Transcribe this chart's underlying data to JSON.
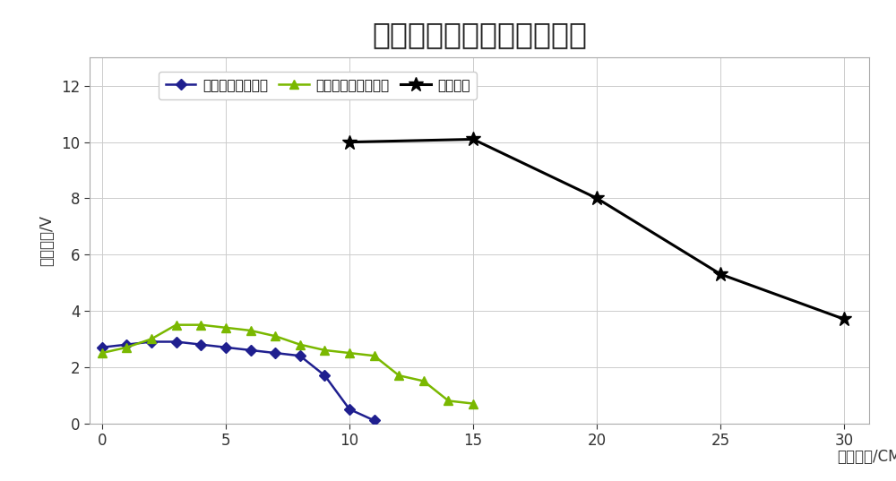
{
  "title": "不同线圈结构传输特性比较",
  "xlabel": "传输距离/CM",
  "ylabel": "副边电压/V",
  "series": [
    {
      "label": "平面线圈副边电压",
      "x": [
        0,
        1,
        2,
        3,
        4,
        5,
        6,
        7,
        8,
        9,
        10,
        11
      ],
      "y": [
        2.7,
        2.8,
        2.9,
        2.9,
        2.8,
        2.7,
        2.6,
        2.5,
        2.4,
        1.7,
        0.5,
        0.1
      ],
      "color": "#1f1f8f",
      "marker": "D",
      "markersize": 6,
      "linewidth": 1.8
    },
    {
      "label": "立方体线圈副边电压",
      "x": [
        0,
        1,
        2,
        3,
        4,
        5,
        6,
        7,
        8,
        9,
        10,
        11,
        12,
        13,
        14,
        15
      ],
      "y": [
        2.5,
        2.7,
        3.0,
        3.5,
        3.5,
        3.4,
        3.3,
        3.1,
        2.8,
        2.6,
        2.5,
        2.4,
        1.7,
        1.5,
        0.8,
        0.7
      ],
      "color": "#7ab800",
      "marker": "^",
      "markersize": 7,
      "linewidth": 1.8
    },
    {
      "label": "碗状线圈",
      "x": [
        10,
        15,
        20,
        25,
        30
      ],
      "y": [
        10.0,
        10.1,
        8.0,
        5.3,
        3.7
      ],
      "color": "#000000",
      "marker": "*",
      "markersize": 12,
      "linewidth": 2.2
    }
  ],
  "xlim": [
    -0.5,
    31
  ],
  "ylim": [
    0,
    13
  ],
  "yticks": [
    0,
    2,
    4,
    6,
    8,
    10,
    12
  ],
  "xticks": [
    0,
    5,
    10,
    15,
    20,
    25,
    30
  ],
  "grid": true,
  "background_color": "#ffffff",
  "plot_bg_color": "#ffffff",
  "title_fontsize": 24,
  "label_fontsize": 12,
  "tick_fontsize": 12,
  "legend_fontsize": 11
}
